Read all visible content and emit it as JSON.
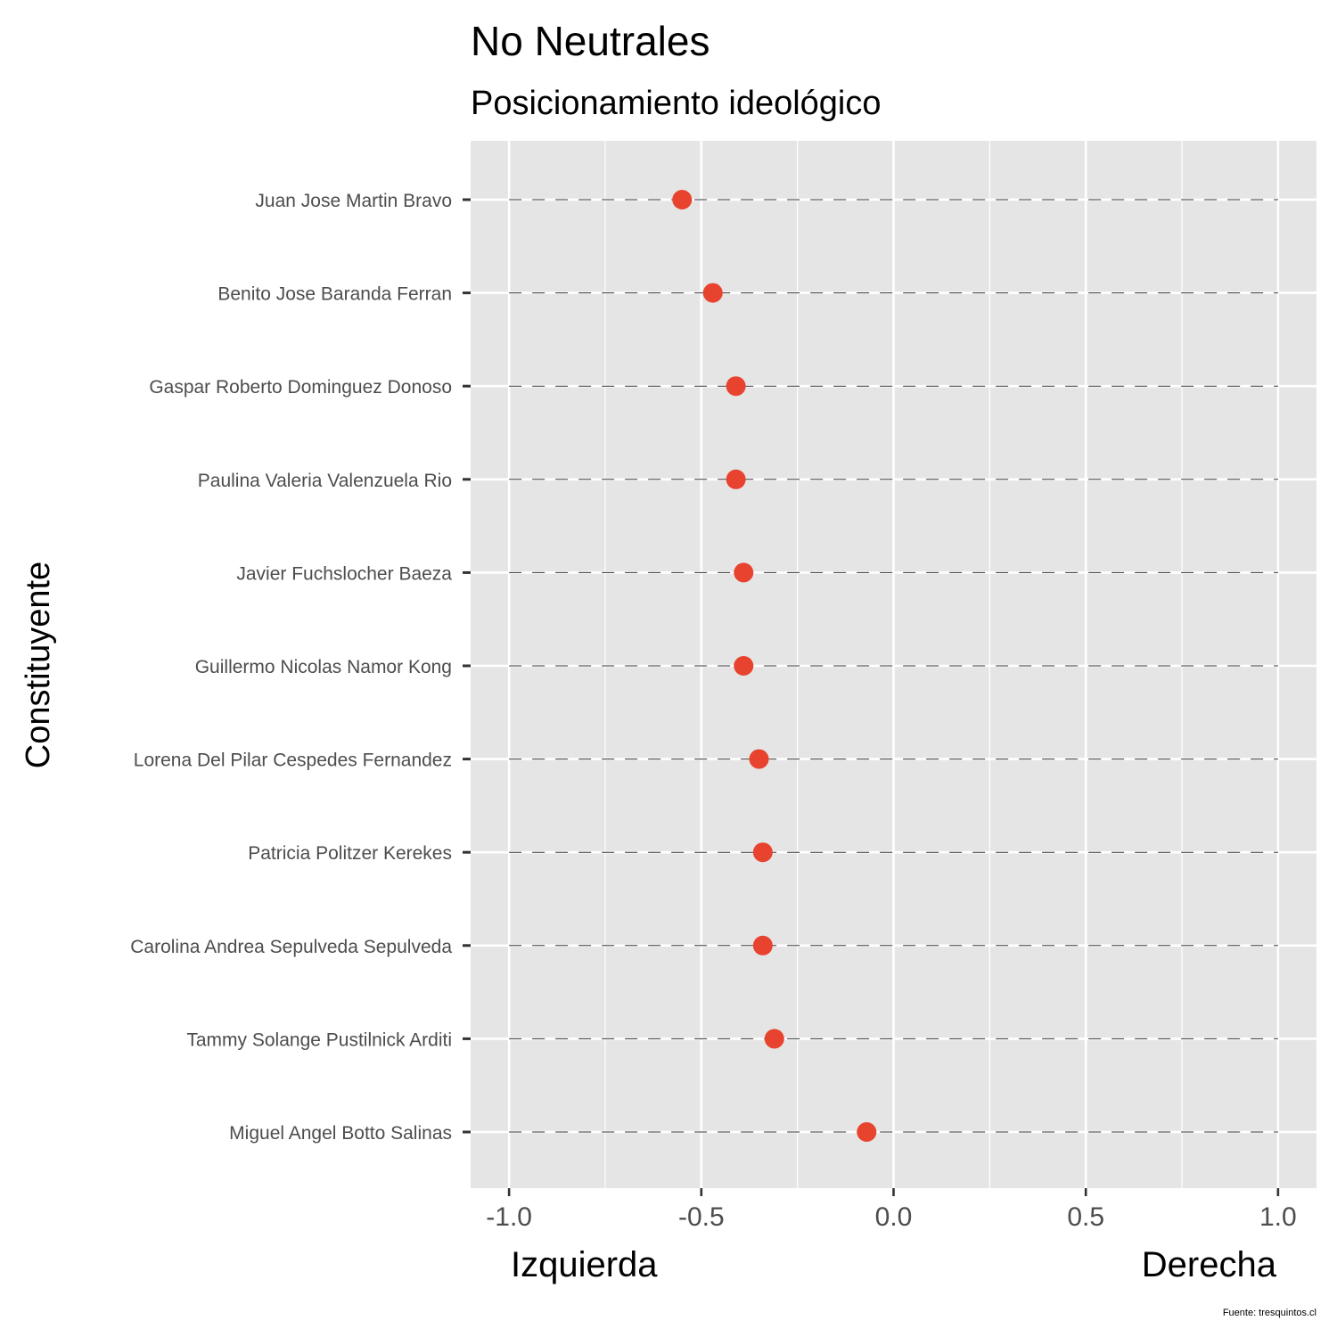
{
  "chart_data": {
    "type": "scatter",
    "title": "No Neutrales",
    "subtitle": "Posicionamiento ideológico",
    "ylabel": "Constituyente",
    "x_left_label": "Izquierda",
    "x_right_label": "Derecha",
    "caption": "Fuente: tresquintos.cl",
    "xlim": [
      -1.1,
      1.1
    ],
    "x_ticks": [
      -1.0,
      -0.5,
      0.0,
      0.5,
      1.0
    ],
    "x_tick_labels": [
      "-1.0",
      "-0.5",
      "0.0",
      "0.5",
      "1.0"
    ],
    "grid": true,
    "point_color": "#E8432E",
    "panel_color": "#E5E5E5",
    "points": [
      {
        "name": "Juan Jose Martin Bravo",
        "x": -0.55
      },
      {
        "name": "Benito Jose Baranda Ferran",
        "x": -0.47
      },
      {
        "name": "Gaspar Roberto Dominguez Donoso",
        "x": -0.41
      },
      {
        "name": "Paulina Valeria Valenzuela Rio",
        "x": -0.41
      },
      {
        "name": "Javier Fuchslocher Baeza",
        "x": -0.39
      },
      {
        "name": "Guillermo Nicolas Namor Kong",
        "x": -0.39
      },
      {
        "name": "Lorena Del Pilar Cespedes Fernandez",
        "x": -0.35
      },
      {
        "name": "Patricia Politzer Kerekes",
        "x": -0.34
      },
      {
        "name": "Carolina Andrea Sepulveda Sepulveda",
        "x": -0.34
      },
      {
        "name": "Tammy Solange Pustilnick Arditi",
        "x": -0.31
      },
      {
        "name": "Miguel Angel Botto Salinas",
        "x": -0.07
      }
    ]
  }
}
